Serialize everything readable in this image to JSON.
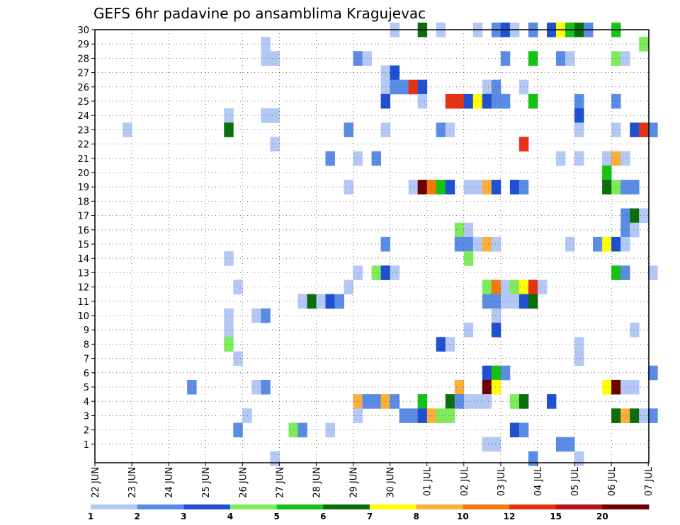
{
  "chart_data": {
    "type": "heatmap",
    "title": "GEFS 6hr padavine po ansamblima Kragujevac",
    "xlabel": "",
    "ylabel": "",
    "x_unit": "6h step",
    "x_range": [
      0,
      90
    ],
    "y_range": [
      0,
      30
    ],
    "x_tick_labels": [
      {
        "label": "22 JUN",
        "step": 0
      },
      {
        "label": "23 JUN",
        "step": 4
      },
      {
        "label": "24 JUN",
        "step": 8
      },
      {
        "label": "25 JUN",
        "step": 12
      },
      {
        "label": "26 JUN",
        "step": 16
      },
      {
        "label": "27 JUN",
        "step": 20
      },
      {
        "label": "28 JUN",
        "step": 24
      },
      {
        "label": "29 JUN",
        "step": 28
      },
      {
        "label": "30 JUN",
        "step": 32
      },
      {
        "label": "01 JUL",
        "step": 36
      },
      {
        "label": "02 JUL",
        "step": 40
      },
      {
        "label": "03 JUL",
        "step": 44
      },
      {
        "label": "04 JUL",
        "step": 48
      },
      {
        "label": "05 JUL",
        "step": 52
      },
      {
        "label": "06 JUL",
        "step": 56
      },
      {
        "label": "07 JUL",
        "step": 60
      }
    ],
    "y_tick_labels": [
      "1",
      "2",
      "3",
      "4",
      "5",
      "6",
      "7",
      "8",
      "9",
      "10",
      "11",
      "12",
      "13",
      "14",
      "15",
      "16",
      "17",
      "18",
      "19",
      "20",
      "21",
      "22",
      "23",
      "24",
      "25",
      "26",
      "27",
      "28",
      "29",
      "30"
    ],
    "grid": true,
    "colorbar": {
      "labels": [
        "1",
        "2",
        "3",
        "4",
        "5",
        "6",
        "7",
        "8",
        "10",
        "12",
        "15",
        "20"
      ],
      "colors": [
        "#b4c8f5",
        "#5a8ce6",
        "#1e50d2",
        "#7deb5a",
        "#14c314",
        "#0a6e0a",
        "#ffff00",
        "#faaf3c",
        "#f5780a",
        "#e63214",
        "#b41414",
        "#6e0000"
      ]
    },
    "cells": [
      [
        30,
        32,
        0
      ],
      [
        30,
        35,
        5
      ],
      [
        30,
        37,
        0
      ],
      [
        30,
        41,
        0
      ],
      [
        30,
        43,
        1
      ],
      [
        30,
        44,
        2
      ],
      [
        30,
        45,
        0
      ],
      [
        30,
        47,
        1
      ],
      [
        30,
        49,
        2
      ],
      [
        30,
        50,
        6
      ],
      [
        30,
        51,
        4
      ],
      [
        30,
        52,
        5
      ],
      [
        30,
        53,
        1
      ],
      [
        30,
        56,
        4
      ],
      [
        29,
        18,
        0
      ],
      [
        29,
        59,
        3
      ],
      [
        28,
        18,
        0
      ],
      [
        28,
        19,
        0
      ],
      [
        28,
        28,
        1
      ],
      [
        28,
        29,
        0
      ],
      [
        28,
        44,
        1
      ],
      [
        28,
        47,
        4
      ],
      [
        28,
        50,
        1
      ],
      [
        28,
        51,
        0
      ],
      [
        28,
        56,
        3
      ],
      [
        28,
        57,
        0
      ],
      [
        27,
        31,
        0
      ],
      [
        27,
        32,
        2
      ],
      [
        26,
        31,
        0
      ],
      [
        26,
        32,
        1
      ],
      [
        26,
        33,
        1
      ],
      [
        26,
        34,
        9
      ],
      [
        26,
        35,
        2
      ],
      [
        26,
        42,
        0
      ],
      [
        26,
        43,
        1
      ],
      [
        26,
        46,
        0
      ],
      [
        25,
        31,
        2
      ],
      [
        25,
        35,
        0
      ],
      [
        25,
        38,
        9
      ],
      [
        25,
        39,
        9
      ],
      [
        25,
        40,
        2
      ],
      [
        25,
        41,
        6
      ],
      [
        25,
        42,
        2
      ],
      [
        25,
        43,
        1
      ],
      [
        25,
        44,
        1
      ],
      [
        25,
        47,
        4
      ],
      [
        25,
        52,
        1
      ],
      [
        25,
        56,
        1
      ],
      [
        24,
        14,
        0
      ],
      [
        24,
        18,
        0
      ],
      [
        24,
        19,
        0
      ],
      [
        24,
        52,
        2
      ],
      [
        23,
        3,
        0
      ],
      [
        23,
        14,
        5
      ],
      [
        23,
        27,
        1
      ],
      [
        23,
        31,
        0
      ],
      [
        23,
        37,
        1
      ],
      [
        23,
        38,
        0
      ],
      [
        23,
        52,
        0
      ],
      [
        23,
        56,
        0
      ],
      [
        23,
        58,
        2
      ],
      [
        23,
        59,
        9
      ],
      [
        23,
        60,
        1
      ],
      [
        22,
        19,
        0
      ],
      [
        22,
        46,
        9
      ],
      [
        21,
        25,
        1
      ],
      [
        21,
        28,
        0
      ],
      [
        21,
        30,
        1
      ],
      [
        21,
        50,
        0
      ],
      [
        21,
        52,
        0
      ],
      [
        21,
        55,
        0
      ],
      [
        21,
        56,
        7
      ],
      [
        21,
        57,
        0
      ],
      [
        20,
        55,
        4
      ],
      [
        19,
        27,
        0
      ],
      [
        19,
        34,
        0
      ],
      [
        19,
        35,
        11
      ],
      [
        19,
        36,
        8
      ],
      [
        19,
        37,
        4
      ],
      [
        19,
        38,
        2
      ],
      [
        19,
        40,
        0
      ],
      [
        19,
        41,
        0
      ],
      [
        19,
        42,
        7
      ],
      [
        19,
        43,
        2
      ],
      [
        19,
        45,
        2
      ],
      [
        19,
        46,
        1
      ],
      [
        19,
        55,
        5
      ],
      [
        19,
        56,
        3
      ],
      [
        19,
        57,
        1
      ],
      [
        19,
        58,
        1
      ],
      [
        17,
        57,
        1
      ],
      [
        17,
        58,
        5
      ],
      [
        17,
        59,
        0
      ],
      [
        16,
        39,
        3
      ],
      [
        16,
        40,
        0
      ],
      [
        16,
        57,
        1
      ],
      [
        16,
        58,
        0
      ],
      [
        15,
        31,
        1
      ],
      [
        15,
        39,
        1
      ],
      [
        15,
        40,
        1
      ],
      [
        15,
        41,
        0
      ],
      [
        15,
        42,
        7
      ],
      [
        15,
        43,
        0
      ],
      [
        15,
        51,
        0
      ],
      [
        15,
        54,
        1
      ],
      [
        15,
        55,
        6
      ],
      [
        15,
        56,
        2
      ],
      [
        15,
        57,
        0
      ],
      [
        14,
        14,
        0
      ],
      [
        14,
        40,
        3
      ],
      [
        13,
        28,
        0
      ],
      [
        13,
        30,
        3
      ],
      [
        13,
        31,
        2
      ],
      [
        13,
        32,
        0
      ],
      [
        13,
        56,
        4
      ],
      [
        13,
        57,
        1
      ],
      [
        13,
        60,
        0
      ],
      [
        12,
        15,
        0
      ],
      [
        12,
        27,
        0
      ],
      [
        12,
        42,
        3
      ],
      [
        12,
        43,
        8
      ],
      [
        12,
        44,
        0
      ],
      [
        12,
        45,
        3
      ],
      [
        12,
        46,
        6
      ],
      [
        12,
        47,
        9
      ],
      [
        12,
        48,
        0
      ],
      [
        11,
        22,
        0
      ],
      [
        11,
        23,
        5
      ],
      [
        11,
        24,
        0
      ],
      [
        11,
        25,
        2
      ],
      [
        11,
        26,
        1
      ],
      [
        11,
        42,
        1
      ],
      [
        11,
        43,
        1
      ],
      [
        11,
        44,
        0
      ],
      [
        11,
        45,
        0
      ],
      [
        11,
        46,
        2
      ],
      [
        11,
        47,
        5
      ],
      [
        10,
        14,
        0
      ],
      [
        10,
        17,
        0
      ],
      [
        10,
        18,
        1
      ],
      [
        10,
        43,
        0
      ],
      [
        9,
        14,
        0
      ],
      [
        9,
        40,
        0
      ],
      [
        9,
        43,
        2
      ],
      [
        9,
        58,
        0
      ],
      [
        8,
        14,
        3
      ],
      [
        8,
        37,
        2
      ],
      [
        8,
        38,
        0
      ],
      [
        8,
        52,
        0
      ],
      [
        7,
        15,
        0
      ],
      [
        7,
        52,
        0
      ],
      [
        6,
        42,
        2
      ],
      [
        6,
        43,
        4
      ],
      [
        6,
        44,
        1
      ],
      [
        6,
        60,
        1
      ],
      [
        5,
        10,
        1
      ],
      [
        5,
        17,
        0
      ],
      [
        5,
        18,
        1
      ],
      [
        5,
        39,
        7
      ],
      [
        5,
        42,
        11
      ],
      [
        5,
        43,
        6
      ],
      [
        5,
        55,
        6
      ],
      [
        5,
        56,
        11
      ],
      [
        5,
        57,
        0
      ],
      [
        5,
        58,
        0
      ],
      [
        4,
        28,
        7
      ],
      [
        4,
        29,
        1
      ],
      [
        4,
        30,
        1
      ],
      [
        4,
        31,
        7
      ],
      [
        4,
        32,
        1
      ],
      [
        4,
        35,
        4
      ],
      [
        4,
        38,
        5
      ],
      [
        4,
        39,
        1
      ],
      [
        4,
        40,
        0
      ],
      [
        4,
        41,
        0
      ],
      [
        4,
        42,
        0
      ],
      [
        4,
        45,
        3
      ],
      [
        4,
        46,
        5
      ],
      [
        4,
        49,
        2
      ],
      [
        3,
        16,
        0
      ],
      [
        3,
        28,
        0
      ],
      [
        3,
        33,
        1
      ],
      [
        3,
        34,
        1
      ],
      [
        3,
        35,
        2
      ],
      [
        3,
        36,
        7
      ],
      [
        3,
        37,
        3
      ],
      [
        3,
        38,
        3
      ],
      [
        3,
        56,
        5
      ],
      [
        3,
        57,
        7
      ],
      [
        3,
        58,
        5
      ],
      [
        3,
        59,
        0
      ],
      [
        3,
        60,
        1
      ],
      [
        2,
        15,
        1
      ],
      [
        2,
        21,
        3
      ],
      [
        2,
        22,
        1
      ],
      [
        2,
        25,
        0
      ],
      [
        2,
        45,
        2
      ],
      [
        2,
        46,
        1
      ],
      [
        1,
        42,
        0
      ],
      [
        1,
        43,
        0
      ],
      [
        1,
        50,
        1
      ],
      [
        1,
        51,
        1
      ],
      [
        0,
        19,
        0
      ],
      [
        0,
        47,
        1
      ],
      [
        0,
        52,
        0
      ]
    ]
  }
}
